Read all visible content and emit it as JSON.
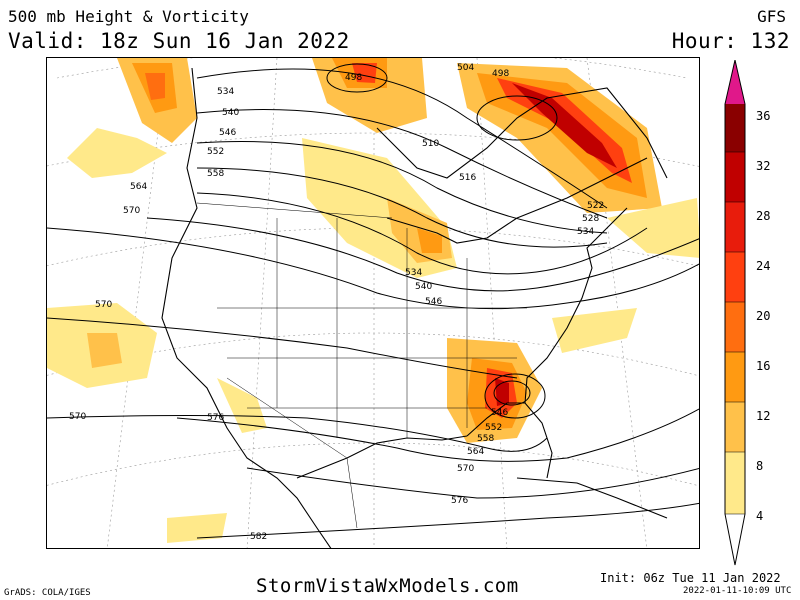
{
  "header": {
    "title": "500 mb Height & Vorticity",
    "valid": "Valid: 18z Sun 16 Jan 2022",
    "model": "GFS",
    "hour": "Hour: 132"
  },
  "colorbar": {
    "ticks": [
      "36",
      "32",
      "28",
      "24",
      "20",
      "16",
      "12",
      "8",
      "4"
    ],
    "colors": [
      "#ffe98a",
      "#ffc14a",
      "#ff9a12",
      "#ff6e10",
      "#ff4010",
      "#e81c0c",
      "#c00000",
      "#8a0000",
      "#e0188a"
    ]
  },
  "contours": {
    "labels": [
      "498",
      "498",
      "504",
      "510",
      "516",
      "522",
      "528",
      "534",
      "534",
      "534",
      "540",
      "540",
      "546",
      "546",
      "546",
      "552",
      "552",
      "558",
      "558",
      "564",
      "564",
      "570",
      "570",
      "570",
      "570",
      "576",
      "576",
      "582"
    ]
  },
  "footer": {
    "site": "StormVistaWxModels.com",
    "credit": "GrADS: COLA/IGES",
    "init": "Init: 06z Tue 11 Jan 2022",
    "stamp": "2022-01-11-10:09 UTC"
  }
}
